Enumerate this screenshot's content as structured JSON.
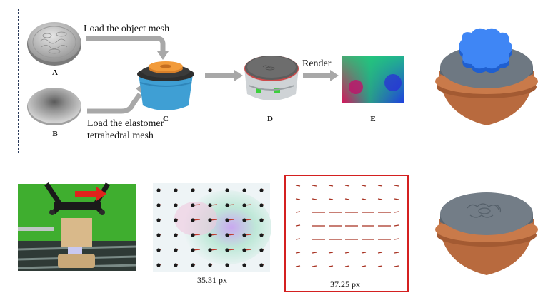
{
  "pipeline": {
    "steps": [
      {
        "letter": "A"
      },
      {
        "letter": "B"
      },
      {
        "letter": "C"
      },
      {
        "letter": "D"
      },
      {
        "letter": "E"
      }
    ],
    "load_object_label": "Load the object mesh",
    "load_elastomer_line1": "Load the elastomer",
    "load_elastomer_line2": "tetrahedral mesh",
    "render_label": "Render"
  },
  "measurements": {
    "left_label": "35.31 px",
    "right_label": "37.25 px"
  },
  "colors": {
    "dashed_border": "#2a3a5a",
    "highlight_frame": "#d42020",
    "arrow_gray": "#a8a8a8",
    "object_blue": "#2f6fe8",
    "pot_terracotta": "#b86a3e"
  }
}
